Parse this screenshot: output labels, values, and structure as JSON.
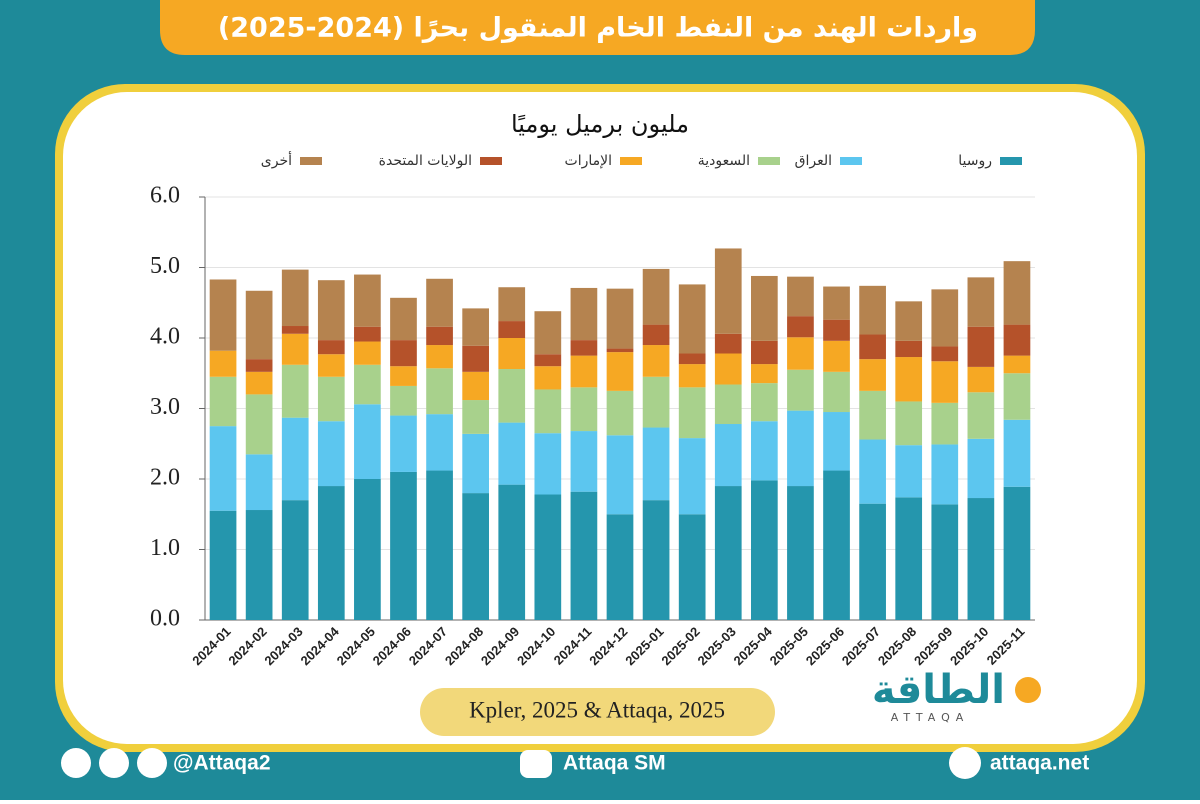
{
  "chart_data": {
    "type": "stacked-bar",
    "title": "واردات الهند من النفط الخام المنقول بحرًا (2024-2025)",
    "subtitle": "مليون برميل يوميًا",
    "source": "Kpler, 2025 & Attaqa, 2025",
    "categories": [
      "2024-01",
      "2024-02",
      "2024-03",
      "2024-04",
      "2024-05",
      "2024-06",
      "2024-07",
      "2024-08",
      "2024-09",
      "2024-10",
      "2024-11",
      "2024-12",
      "2025-01",
      "2025-02",
      "2025-03",
      "2025-04",
      "2025-05",
      "2025-06",
      "2025-07",
      "2025-08",
      "2025-09",
      "2025-10",
      "2025-11"
    ],
    "series": [
      {
        "name": "روسيا",
        "color": "#2596ad",
        "values": [
          1.55,
          1.56,
          1.7,
          1.9,
          2.0,
          2.1,
          2.12,
          1.8,
          1.92,
          1.78,
          1.82,
          1.5,
          1.7,
          1.5,
          1.9,
          1.98,
          1.9,
          2.12,
          1.65,
          1.74,
          1.64,
          1.73,
          1.89
        ]
      },
      {
        "name": "العراق",
        "color": "#5cc6ef",
        "values": [
          1.2,
          0.79,
          1.17,
          0.92,
          1.06,
          0.8,
          0.8,
          0.84,
          0.88,
          0.87,
          0.86,
          1.12,
          1.03,
          1.08,
          0.88,
          0.84,
          1.07,
          0.83,
          0.91,
          0.74,
          0.85,
          0.84,
          0.95
        ]
      },
      {
        "name": "السعودية",
        "color": "#a8d18c",
        "values": [
          0.7,
          0.85,
          0.75,
          0.63,
          0.56,
          0.42,
          0.65,
          0.48,
          0.76,
          0.62,
          0.62,
          0.63,
          0.72,
          0.72,
          0.56,
          0.54,
          0.58,
          0.57,
          0.69,
          0.62,
          0.59,
          0.66,
          0.66
        ]
      },
      {
        "name": "الإمارات",
        "color": "#f6a823",
        "values": [
          0.37,
          0.32,
          0.44,
          0.32,
          0.33,
          0.28,
          0.33,
          0.4,
          0.44,
          0.33,
          0.45,
          0.55,
          0.45,
          0.33,
          0.44,
          0.27,
          0.46,
          0.44,
          0.45,
          0.63,
          0.59,
          0.36,
          0.25
        ]
      },
      {
        "name": "الولايات المتحدة",
        "color": "#b5522a",
        "values": [
          0,
          0.18,
          0.11,
          0.2,
          0.21,
          0.37,
          0.26,
          0.37,
          0.24,
          0.17,
          0.22,
          0.05,
          0.29,
          0.15,
          0.28,
          0.33,
          0.3,
          0.3,
          0.35,
          0.23,
          0.21,
          0.57,
          0.44
        ]
      },
      {
        "name": "أخرى",
        "color": "#b5834f",
        "values": [
          1.01,
          0.97,
          0.8,
          0.85,
          0.74,
          0.6,
          0.68,
          0.53,
          0.48,
          0.61,
          0.74,
          0.85,
          0.79,
          0.98,
          1.21,
          0.92,
          0.56,
          0.47,
          0.69,
          0.56,
          0.81,
          0.7,
          0.9
        ]
      }
    ],
    "ylim": [
      0,
      6
    ],
    "yticks": [
      {
        "value": 0,
        "label": "0.0"
      },
      {
        "value": 1,
        "label": "1.0"
      },
      {
        "value": 2,
        "label": "2.0"
      },
      {
        "value": 3,
        "label": "3.0"
      },
      {
        "value": 4,
        "label": "4.0"
      },
      {
        "value": 5,
        "label": "5.0"
      },
      {
        "value": 6,
        "label": "6.0"
      }
    ],
    "grid": true
  },
  "logo": {
    "name": "الطاقة",
    "latin": "ATTAQA"
  },
  "footer": {
    "social": "@Attaqa2",
    "youtube": "Attaqa SM",
    "website": "attaqa.net"
  }
}
